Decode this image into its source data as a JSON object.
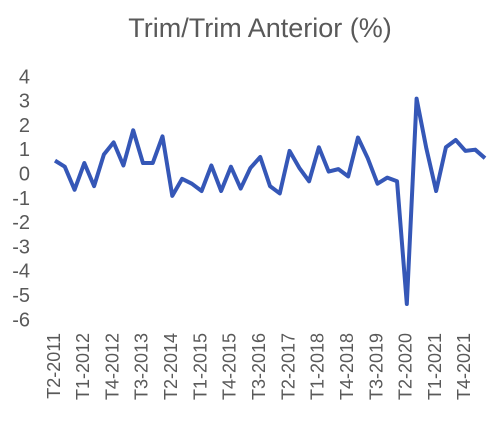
{
  "chart_data": {
    "type": "line",
    "title": "Trim/Trim Anterior (%)",
    "categories": [
      "T2-2011",
      null,
      null,
      "T1-2012",
      null,
      null,
      "T4-2012",
      null,
      null,
      "T3-2013",
      null,
      null,
      "T2-2014",
      null,
      null,
      "T1-2015",
      null,
      null,
      "T4-2015",
      null,
      null,
      "T3-2016",
      null,
      null,
      "T2-2017",
      null,
      null,
      "T1-2018",
      null,
      null,
      "T4-2018",
      null,
      null,
      "T3-2019",
      null,
      null,
      "T2-2020",
      null,
      null,
      "T1-2021",
      null,
      null,
      "T4-2021",
      null,
      null
    ],
    "series": [
      {
        "color": "#3557b7",
        "values": [
          0.6,
          0.35,
          -0.6,
          0.5,
          -0.45,
          0.85,
          1.35,
          0.4,
          1.85,
          0.5,
          0.5,
          1.6,
          -0.85,
          -0.15,
          -0.35,
          -0.65,
          0.4,
          -0.65,
          0.35,
          -0.55,
          0.3,
          0.75,
          -0.45,
          -0.75,
          1.0,
          0.3,
          -0.25,
          1.15,
          0.15,
          0.25,
          -0.05,
          1.55,
          0.7,
          -0.35,
          -0.1,
          -0.25,
          -5.3,
          3.15,
          1.1,
          -0.65,
          1.15,
          1.45,
          1.0,
          1.05,
          0.7
        ]
      }
    ],
    "ylim": [
      -6,
      4
    ],
    "yticks": [
      -6,
      -5,
      -4,
      -3,
      -2,
      -1,
      0,
      1,
      2,
      3,
      4
    ],
    "grid": false
  }
}
